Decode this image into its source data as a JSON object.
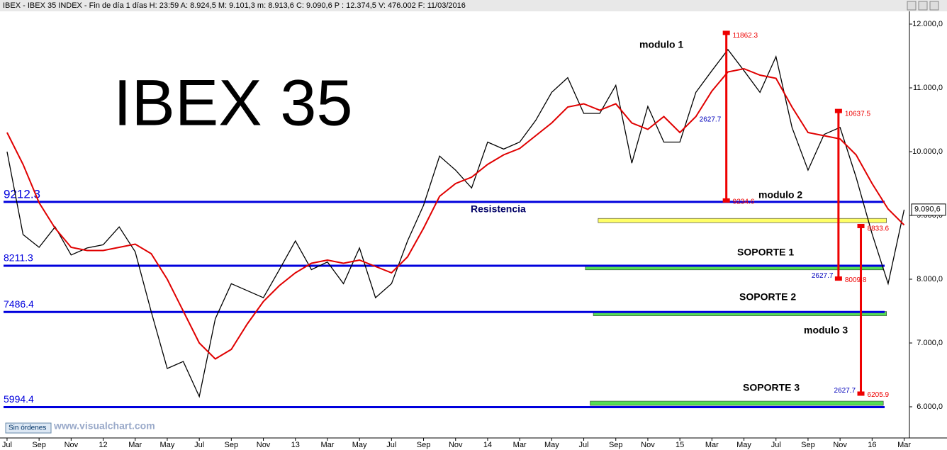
{
  "chart_data": {
    "type": "line",
    "header": "IBEX - IBEX 35 INDEX - Fin de día 1 días  H: 23:59  A: 8.924,5  M: 9.101,3  m: 8.913,6  C: 9.090,6  P : 12.374,5  V: 476.002  F: 11/03/2016",
    "title": "IBEX 35",
    "x": [
      0,
      1,
      2,
      3,
      4,
      5,
      6,
      7,
      8,
      9,
      10,
      11,
      12,
      13,
      14,
      15,
      16,
      17,
      18,
      19,
      20,
      21,
      22,
      23,
      24,
      25,
      26,
      27,
      28,
      29,
      30,
      31,
      32,
      33,
      34,
      35,
      36,
      37,
      38,
      39,
      40,
      41,
      42,
      43,
      44,
      45,
      46,
      47,
      48,
      49,
      50,
      51,
      52,
      53,
      54,
      55,
      56
    ],
    "series": [
      {
        "name": "IBEX 35",
        "color": "#000000",
        "values": [
          10000,
          8700,
          8500,
          8820,
          8380,
          8490,
          8540,
          8820,
          8430,
          7490,
          6600,
          6710,
          6160,
          7380,
          7930,
          7820,
          7710,
          8150,
          8600,
          8150,
          8270,
          7930,
          8490,
          7710,
          7930,
          8600,
          9160,
          9930,
          9710,
          9430,
          10150,
          10040,
          10150,
          10490,
          10930,
          11160,
          10600,
          10600,
          11040,
          9820,
          10710,
          10150,
          10150,
          10930,
          11270,
          11600,
          11270,
          10930,
          11490,
          10380,
          9710,
          10270,
          10380,
          9600,
          8710,
          7930,
          9090
        ]
      },
      {
        "name": "Media",
        "color": "#e00000",
        "values": [
          10300,
          9800,
          9200,
          8800,
          8500,
          8450,
          8450,
          8500,
          8550,
          8400,
          8000,
          7500,
          7000,
          6750,
          6900,
          7300,
          7650,
          7900,
          8100,
          8250,
          8300,
          8250,
          8300,
          8200,
          8100,
          8350,
          8800,
          9300,
          9500,
          9600,
          9800,
          9950,
          10050,
          10250,
          10450,
          10700,
          10750,
          10650,
          10750,
          10450,
          10350,
          10550,
          10300,
          10550,
          10950,
          11250,
          11300,
          11200,
          11150,
          10700,
          10300,
          10250,
          10200,
          9950,
          9500,
          9100,
          8850
        ]
      }
    ],
    "xlim": [
      -0.44,
      56.33
    ],
    "ylim": [
      5511,
      12200
    ],
    "xticks": [
      {
        "value": 0,
        "label": "Jul"
      },
      {
        "value": 2,
        "label": "Sep"
      },
      {
        "value": 4,
        "label": "Nov"
      },
      {
        "value": 6,
        "label": "12"
      },
      {
        "value": 8,
        "label": "Mar"
      },
      {
        "value": 10,
        "label": "May"
      },
      {
        "value": 12,
        "label": "Jul"
      },
      {
        "value": 14,
        "label": "Sep"
      },
      {
        "value": 16,
        "label": "Nov"
      },
      {
        "value": 18,
        "label": "13"
      },
      {
        "value": 20,
        "label": "Mar"
      },
      {
        "value": 22,
        "label": "May"
      },
      {
        "value": 24,
        "label": "Jul"
      },
      {
        "value": 26,
        "label": "Sep"
      },
      {
        "value": 28,
        "label": "Nov"
      },
      {
        "value": 30,
        "label": "14"
      },
      {
        "value": 32,
        "label": "Mar"
      },
      {
        "value": 34,
        "label": "May"
      },
      {
        "value": 36,
        "label": "Jul"
      },
      {
        "value": 38,
        "label": "Sep"
      },
      {
        "value": 40,
        "label": "Nov"
      },
      {
        "value": 42,
        "label": "15"
      },
      {
        "value": 44,
        "label": "Mar"
      },
      {
        "value": 46,
        "label": "May"
      },
      {
        "value": 48,
        "label": "Jul"
      },
      {
        "value": 50,
        "label": "Sep"
      },
      {
        "value": 52,
        "label": "Nov"
      },
      {
        "value": 54,
        "label": "16"
      },
      {
        "value": 56,
        "label": "Mar"
      }
    ],
    "yticks": [
      {
        "value": 6000,
        "label": "6.000,0"
      },
      {
        "value": 7000,
        "label": "7.000,0"
      },
      {
        "value": 8000,
        "label": "8.000,0"
      },
      {
        "value": 9000,
        "label": "9.000,0"
      },
      {
        "value": 10000,
        "label": "10.000,0"
      },
      {
        "value": 11000,
        "label": "11.000,0"
      },
      {
        "value": 12000,
        "label": "12.000,0"
      }
    ],
    "last": {
      "value": 9090.6,
      "label": "9.090,6"
    },
    "levels": [
      9212.3,
      8211.3,
      7486.4,
      5994.4
    ],
    "level_color": "#0000dd",
    "bands": [
      {
        "value": 8920,
        "from": 36.9,
        "to": 54.9,
        "color": "#ffff66"
      },
      {
        "value": 8180,
        "from": 36.1,
        "to": 54.7,
        "color": "#55dd55"
      },
      {
        "value": 7460,
        "from": 36.6,
        "to": 54.9,
        "color": "#55dd55"
      },
      {
        "value": 6055,
        "from": 36.4,
        "to": 54.7,
        "color": "#55dd55"
      }
    ],
    "measures": [
      {
        "x": 44.9,
        "top": 11862.3,
        "bottom": 9234.6,
        "range": 2627.7
      },
      {
        "x": 51.9,
        "top": 10637.5,
        "bottom": 8009.8,
        "range": 2627.7
      },
      {
        "x": 53.3,
        "top": 8833.6,
        "bottom": 6205.9,
        "range": 2627.7
      }
    ],
    "notes": [
      "modulo 1",
      "modulo 2",
      "modulo 3",
      "SOPORTE 1",
      "SOPORTE 2",
      "SOPORTE 3",
      "Resistencia"
    ],
    "status": "Sin órdenes",
    "brand": "www.visualchart.com"
  }
}
